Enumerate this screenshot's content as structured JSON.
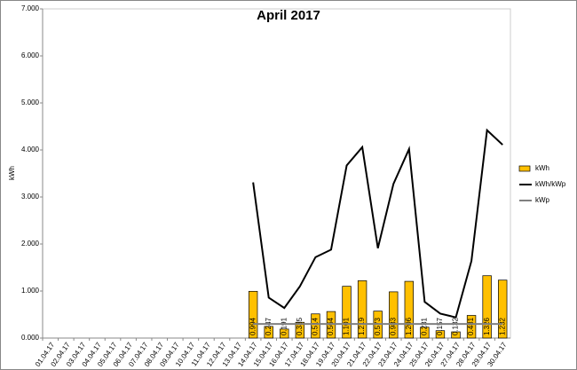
{
  "chart_data": {
    "type": "bar",
    "title": "April 2017",
    "y_label": "kWh",
    "categories": [
      "01.04.17",
      "02.04.17",
      "03.04.17",
      "04.04.17",
      "05.04.17",
      "06.04.17",
      "07.04.17",
      "08.04.17",
      "09.04.17",
      "10.04.17",
      "11.04.17",
      "12.04.17",
      "13.04.17",
      "14.04.17",
      "15.04.17",
      "16.04.17",
      "17.04.17",
      "18.04.17",
      "19.04.17",
      "20.04.17",
      "21.04.17",
      "22.04.17",
      "23.04.17",
      "24.04.17",
      "25.04.17",
      "26.04.17",
      "27.04.17",
      "28.04.17",
      "29.04.17",
      "30.04.17"
    ],
    "series": [
      {
        "name": "kWh",
        "type": "bar",
        "color": "#ffc000",
        "data_labels": true,
        "values": [
          null,
          null,
          null,
          null,
          null,
          null,
          null,
          null,
          null,
          null,
          null,
          null,
          null,
          0.994,
          0.247,
          0.191,
          0.335,
          0.514,
          0.564,
          1.101,
          1.219,
          0.573,
          0.983,
          1.206,
          0.231,
          0.157,
          0.132,
          0.481,
          1.326,
          1.232
        ]
      },
      {
        "name": "kWh/kWp",
        "type": "line",
        "color": "#000000",
        "values": [
          null,
          null,
          null,
          null,
          null,
          null,
          null,
          null,
          null,
          null,
          null,
          null,
          null,
          3.31,
          0.86,
          0.64,
          1.1,
          1.72,
          1.88,
          3.67,
          4.06,
          1.91,
          3.28,
          4.02,
          0.77,
          0.52,
          0.44,
          1.64,
          4.42,
          4.11
        ]
      },
      {
        "name": "kWp",
        "type": "line",
        "color": "#808080",
        "values": [
          null,
          null,
          null,
          null,
          null,
          null,
          null,
          null,
          null,
          null,
          null,
          null,
          null,
          0.3,
          0.3,
          0.3,
          0.3,
          0.3,
          0.3,
          0.3,
          0.3,
          0.3,
          0.3,
          0.3,
          0.3,
          0.3,
          0.3,
          0.3,
          0.3,
          0.3
        ]
      }
    ],
    "ylim": [
      0,
      7
    ],
    "yticks": [
      {
        "value": 0,
        "label": "0.000"
      },
      {
        "value": 1,
        "label": "1.000"
      },
      {
        "value": 2,
        "label": "2.000"
      },
      {
        "value": 3,
        "label": "3.000"
      },
      {
        "value": 4,
        "label": "4.000"
      },
      {
        "value": 5,
        "label": "5.000"
      },
      {
        "value": 6,
        "label": "6.000"
      },
      {
        "value": 7,
        "label": "7.000"
      }
    ],
    "grid": false,
    "legend": "right"
  }
}
